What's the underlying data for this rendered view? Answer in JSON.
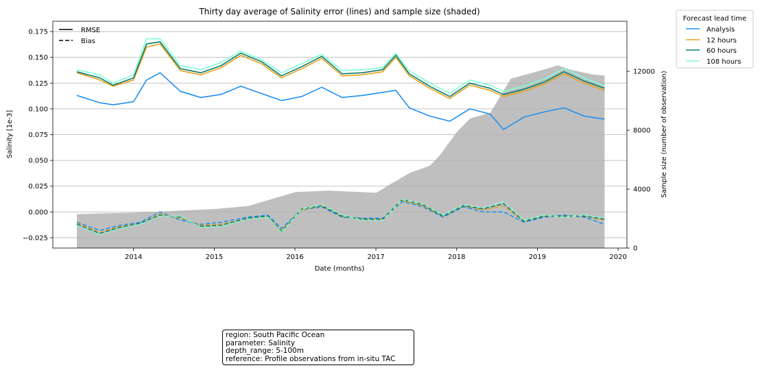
{
  "chart_data": {
    "type": "line",
    "title": "Thirty day average of Salinity error (lines) and sample size (shaded)",
    "xlabel": "Date (months)",
    "ylabel": "Salinity [1e-3]",
    "y2label": "Sample size (number of observation)",
    "xlim": [
      "2013-01-01",
      "2020-02-10"
    ],
    "ylim": [
      -0.035,
      0.185
    ],
    "y2lim": [
      0,
      15400
    ],
    "x_ticks": [
      "2014",
      "2015",
      "2016",
      "2017",
      "2018",
      "2019",
      "2020"
    ],
    "y_ticks": [
      "0.175",
      "0.150",
      "0.125",
      "0.100",
      "0.075",
      "0.050",
      "0.025",
      "0.000",
      "−0.025"
    ],
    "y2_ticks": [
      "0",
      "4000",
      "8000",
      "12000"
    ],
    "grid": "horizontal",
    "style_legend": {
      "placement": "top-left",
      "entries": [
        {
          "label": "RMSE",
          "style": "solid"
        },
        {
          "label": "Bias",
          "style": "dashed"
        }
      ]
    },
    "series_legend": {
      "title": "Forecast lead time",
      "placement": "outside-right",
      "entries": [
        {
          "label": "Analysis",
          "color": "#1e8ff0"
        },
        {
          "label": "12 hours",
          "color": "#e6a018"
        },
        {
          "label": "60 hours",
          "color": "#0a7a6a"
        },
        {
          "label": "108 hours",
          "color": "#7fffd4"
        }
      ]
    },
    "sample_size": {
      "color": "#bfbfbf",
      "dates": [
        "2013-04-20",
        "2013-08-01",
        "2014-01-01",
        "2014-06-01",
        "2015-01-01",
        "2015-06-01",
        "2016-01-01",
        "2016-06-01",
        "2017-01-01",
        "2017-03-01",
        "2017-06-01",
        "2017-09-01",
        "2017-10-15",
        "2018-01-01",
        "2018-03-01",
        "2018-06-01",
        "2018-09-01",
        "2019-01-01",
        "2019-04-01",
        "2019-06-01",
        "2019-09-01",
        "2019-11-01"
      ],
      "values": [
        2300,
        2350,
        2400,
        2500,
        2650,
        2850,
        3800,
        3900,
        3750,
        4300,
        5100,
        5600,
        6300,
        7900,
        8800,
        9200,
        11500,
        12000,
        12400,
        12100,
        11800,
        11700
      ]
    },
    "series": [
      {
        "name": "Analysis",
        "metric": "RMSE",
        "color": "#1e8ff0",
        "dates": [
          "2013-04-20",
          "2013-08-01",
          "2013-10-01",
          "2014-01-01",
          "2014-03-01",
          "2014-05-01",
          "2014-08-01",
          "2014-11-01",
          "2015-02-01",
          "2015-05-01",
          "2015-08-01",
          "2015-11-01",
          "2016-02-01",
          "2016-05-01",
          "2016-08-01",
          "2016-11-01",
          "2017-02-01",
          "2017-04-01",
          "2017-06-01",
          "2017-09-01",
          "2017-12-01",
          "2018-03-01",
          "2018-06-01",
          "2018-08-01",
          "2018-11-01",
          "2019-02-01",
          "2019-05-01",
          "2019-08-01",
          "2019-11-01"
        ],
        "values": [
          0.113,
          0.106,
          0.104,
          0.107,
          0.128,
          0.135,
          0.117,
          0.111,
          0.114,
          0.122,
          0.115,
          0.108,
          0.112,
          0.121,
          0.111,
          0.113,
          0.116,
          0.118,
          0.101,
          0.093,
          0.088,
          0.1,
          0.095,
          0.08,
          0.092,
          0.097,
          0.101,
          0.093,
          0.09
        ]
      },
      {
        "name": "12 hours",
        "metric": "RMSE",
        "color": "#e6a018",
        "dates": [
          "2013-04-20",
          "2013-08-01",
          "2013-10-01",
          "2014-01-01",
          "2014-03-01",
          "2014-05-01",
          "2014-08-01",
          "2014-11-01",
          "2015-02-01",
          "2015-05-01",
          "2015-08-01",
          "2015-11-01",
          "2016-02-01",
          "2016-05-01",
          "2016-08-01",
          "2016-11-01",
          "2017-02-01",
          "2017-04-01",
          "2017-06-01",
          "2017-09-01",
          "2017-12-01",
          "2018-03-01",
          "2018-06-01",
          "2018-08-01",
          "2018-11-01",
          "2019-02-01",
          "2019-05-01",
          "2019-08-01",
          "2019-11-01"
        ],
        "values": [
          0.135,
          0.128,
          0.122,
          0.128,
          0.16,
          0.163,
          0.137,
          0.133,
          0.14,
          0.152,
          0.144,
          0.13,
          0.139,
          0.149,
          0.132,
          0.133,
          0.136,
          0.15,
          0.132,
          0.12,
          0.11,
          0.123,
          0.118,
          0.112,
          0.117,
          0.124,
          0.134,
          0.125,
          0.118
        ]
      },
      {
        "name": "60 hours",
        "metric": "RMSE",
        "color": "#0a7a6a",
        "dates": [
          "2013-04-20",
          "2013-08-01",
          "2013-10-01",
          "2014-01-01",
          "2014-03-01",
          "2014-05-01",
          "2014-08-01",
          "2014-11-01",
          "2015-02-01",
          "2015-05-01",
          "2015-08-01",
          "2015-11-01",
          "2016-02-01",
          "2016-05-01",
          "2016-08-01",
          "2016-11-01",
          "2017-02-01",
          "2017-04-01",
          "2017-06-01",
          "2017-09-01",
          "2017-12-01",
          "2018-03-01",
          "2018-06-01",
          "2018-08-01",
          "2018-11-01",
          "2019-02-01",
          "2019-05-01",
          "2019-08-01",
          "2019-11-01"
        ],
        "values": [
          0.136,
          0.13,
          0.123,
          0.13,
          0.163,
          0.165,
          0.139,
          0.135,
          0.142,
          0.154,
          0.146,
          0.132,
          0.141,
          0.151,
          0.134,
          0.135,
          0.138,
          0.152,
          0.134,
          0.122,
          0.112,
          0.125,
          0.12,
          0.114,
          0.119,
          0.126,
          0.136,
          0.127,
          0.12
        ]
      },
      {
        "name": "108 hours",
        "metric": "RMSE",
        "color": "#7fffd4",
        "dates": [
          "2013-04-20",
          "2013-08-01",
          "2013-10-01",
          "2014-01-01",
          "2014-03-01",
          "2014-05-01",
          "2014-08-01",
          "2014-11-01",
          "2015-02-01",
          "2015-05-01",
          "2015-08-01",
          "2015-11-01",
          "2016-02-01",
          "2016-05-01",
          "2016-08-01",
          "2016-11-01",
          "2017-02-01",
          "2017-04-01",
          "2017-06-01",
          "2017-09-01",
          "2017-12-01",
          "2018-03-01",
          "2018-06-01",
          "2018-08-01",
          "2018-11-01",
          "2019-02-01",
          "2019-05-01",
          "2019-08-01",
          "2019-11-01"
        ],
        "values": [
          0.138,
          0.133,
          0.125,
          0.133,
          0.168,
          0.168,
          0.142,
          0.138,
          0.145,
          0.156,
          0.148,
          0.135,
          0.144,
          0.153,
          0.137,
          0.138,
          0.14,
          0.154,
          0.137,
          0.125,
          0.115,
          0.128,
          0.123,
          0.117,
          0.122,
          0.129,
          0.139,
          0.13,
          0.122
        ]
      },
      {
        "name": "Analysis",
        "metric": "Bias",
        "color": "#1e8ff0",
        "dates": [
          "2013-04-20",
          "2013-08-01",
          "2013-11-01",
          "2014-02-01",
          "2014-05-01",
          "2014-08-01",
          "2014-11-01",
          "2015-02-01",
          "2015-06-01",
          "2015-09-01",
          "2015-11-01",
          "2016-02-01",
          "2016-05-01",
          "2016-08-01",
          "2016-11-01",
          "2017-02-01",
          "2017-05-01",
          "2017-08-01",
          "2017-11-01",
          "2018-02-01",
          "2018-05-01",
          "2018-08-01",
          "2018-11-01",
          "2019-02-01",
          "2019-05-01",
          "2019-08-01",
          "2019-11-01"
        ],
        "values": [
          -0.01,
          -0.018,
          -0.013,
          -0.01,
          0.0,
          -0.008,
          -0.012,
          -0.01,
          -0.005,
          -0.003,
          -0.016,
          0.002,
          0.005,
          -0.005,
          -0.006,
          -0.006,
          0.01,
          0.005,
          -0.005,
          0.005,
          0.0,
          0.0,
          -0.01,
          -0.005,
          -0.003,
          -0.005,
          -0.012
        ]
      },
      {
        "name": "12 hours",
        "metric": "Bias",
        "color": "#e6a018",
        "dates": [
          "2013-04-20",
          "2013-08-01",
          "2013-11-01",
          "2014-02-01",
          "2014-05-01",
          "2014-08-01",
          "2014-11-01",
          "2015-02-01",
          "2015-06-01",
          "2015-09-01",
          "2015-11-01",
          "2016-02-01",
          "2016-05-01",
          "2016-08-01",
          "2016-11-01",
          "2017-02-01",
          "2017-05-01",
          "2017-08-01",
          "2017-11-01",
          "2018-02-01",
          "2018-05-01",
          "2018-08-01",
          "2018-11-01",
          "2019-02-01",
          "2019-05-01",
          "2019-08-01",
          "2019-11-01"
        ],
        "values": [
          -0.011,
          -0.02,
          -0.014,
          -0.011,
          -0.002,
          -0.006,
          -0.013,
          -0.012,
          -0.006,
          -0.004,
          -0.018,
          0.002,
          0.006,
          -0.004,
          -0.007,
          -0.007,
          0.011,
          0.006,
          -0.004,
          0.006,
          0.002,
          0.006,
          -0.009,
          -0.004,
          -0.004,
          -0.004,
          -0.008
        ]
      },
      {
        "name": "60 hours",
        "metric": "Bias",
        "color": "#0a7a6a",
        "dates": [
          "2013-04-20",
          "2013-08-01",
          "2013-11-01",
          "2014-02-01",
          "2014-05-01",
          "2014-08-01",
          "2014-11-01",
          "2015-02-01",
          "2015-06-01",
          "2015-09-01",
          "2015-11-01",
          "2016-02-01",
          "2016-05-01",
          "2016-08-01",
          "2016-11-01",
          "2017-02-01",
          "2017-05-01",
          "2017-08-01",
          "2017-11-01",
          "2018-02-01",
          "2018-05-01",
          "2018-08-01",
          "2018-11-01",
          "2019-02-01",
          "2019-05-01",
          "2019-08-01",
          "2019-11-01"
        ],
        "values": [
          -0.012,
          -0.021,
          -0.015,
          -0.011,
          -0.003,
          -0.005,
          -0.014,
          -0.013,
          -0.006,
          -0.004,
          -0.019,
          0.003,
          0.006,
          -0.004,
          -0.007,
          -0.007,
          0.012,
          0.007,
          -0.004,
          0.006,
          0.003,
          0.008,
          -0.009,
          -0.004,
          -0.004,
          -0.004,
          -0.007
        ]
      },
      {
        "name": "108 hours",
        "metric": "Bias",
        "color": "#7fffd4",
        "dates": [
          "2013-04-20",
          "2013-08-01",
          "2013-11-01",
          "2014-02-01",
          "2014-05-01",
          "2014-08-01",
          "2014-11-01",
          "2015-02-01",
          "2015-06-01",
          "2015-09-01",
          "2015-11-01",
          "2016-02-01",
          "2016-05-01",
          "2016-08-01",
          "2016-11-01",
          "2017-02-01",
          "2017-05-01",
          "2017-08-01",
          "2017-11-01",
          "2018-02-01",
          "2018-05-01",
          "2018-08-01",
          "2018-11-01",
          "2019-02-01",
          "2019-05-01",
          "2019-08-01",
          "2019-11-01"
        ],
        "values": [
          -0.013,
          -0.022,
          -0.016,
          -0.012,
          -0.004,
          -0.004,
          -0.015,
          -0.014,
          -0.007,
          -0.005,
          -0.02,
          0.003,
          0.007,
          -0.003,
          -0.008,
          -0.008,
          0.012,
          0.008,
          -0.003,
          0.007,
          0.004,
          0.01,
          -0.008,
          -0.003,
          -0.005,
          -0.003,
          -0.006
        ]
      }
    ]
  },
  "info_box": {
    "line1": "region: South Pacific Ocean",
    "line2": "parameter: Salinity",
    "line3": "depth_range: 5-100m",
    "line4": "reference: Profile observations from in-situ TAC"
  }
}
